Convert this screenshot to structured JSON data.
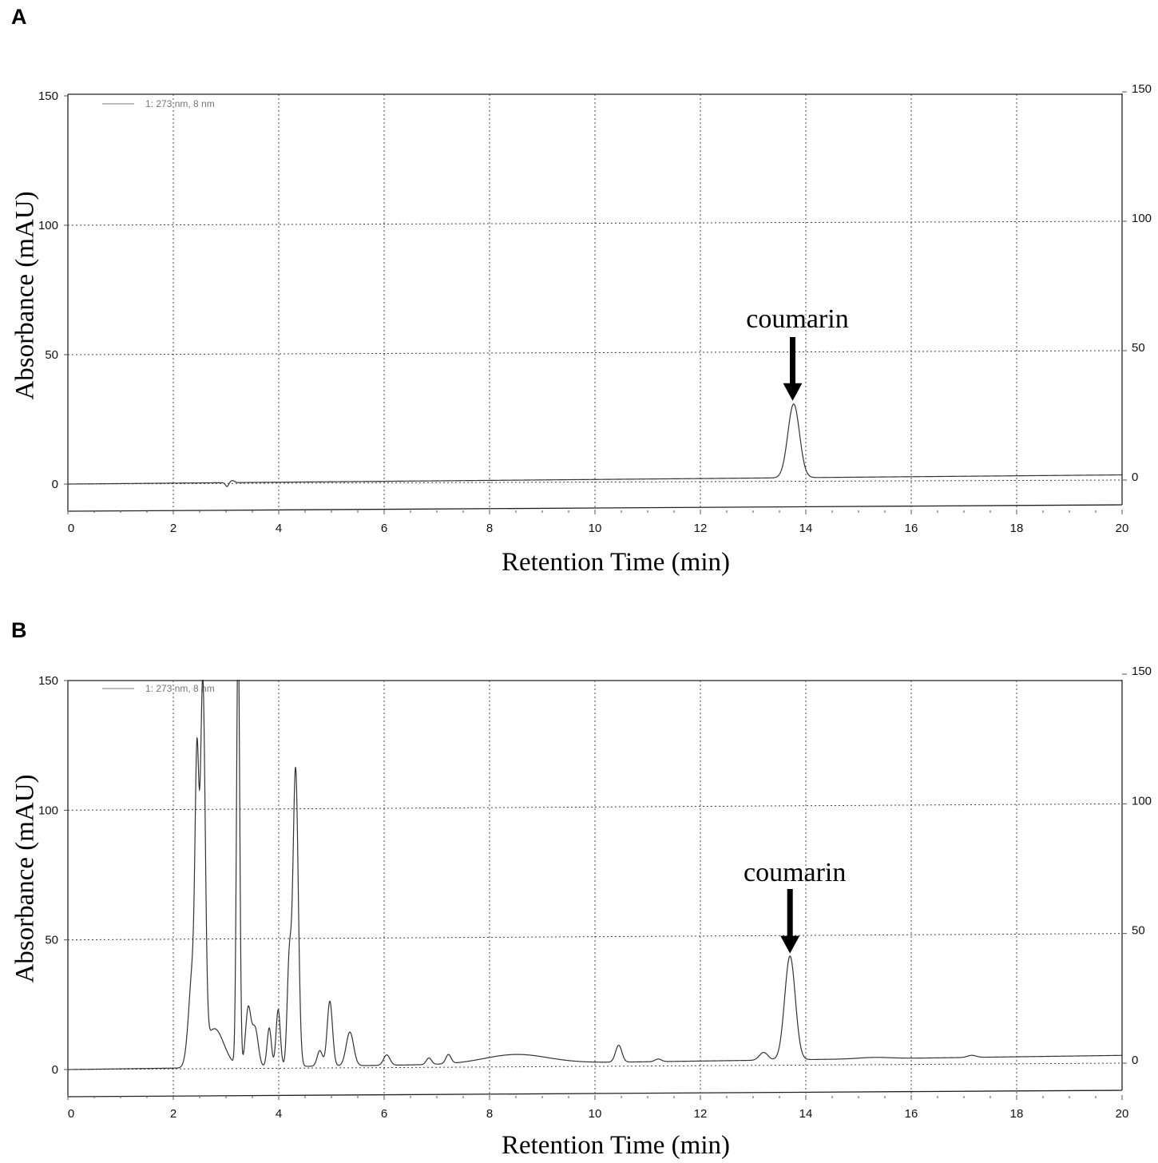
{
  "chart_data": [
    {
      "type": "line",
      "panel_label": "A",
      "title": "",
      "xlabel": "Retention Time (min)",
      "ylabel": "Absorbance (mAU)",
      "xlim": [
        0,
        20
      ],
      "ylim": [
        -10,
        150
      ],
      "x_ticks": [
        0,
        2,
        4,
        6,
        8,
        10,
        12,
        14,
        16,
        18,
        20
      ],
      "y_ticks": [
        0,
        50,
        100,
        150
      ],
      "right_y_ticks": [
        0,
        50,
        100,
        150
      ],
      "grid": true,
      "legend": {
        "position": "top-left",
        "text": "1: 273 nm, 8 nm"
      },
      "annotation": {
        "text": "coumarin",
        "x": 13.75
      },
      "baseline": {
        "x": [
          0,
          20
        ],
        "y": [
          0,
          2
        ]
      },
      "peaks": [
        {
          "rt": 3.02,
          "height": -1.5,
          "width": 0.03
        },
        {
          "rt": 3.12,
          "height": 0.8,
          "width": 0.04
        },
        {
          "rt": 13.77,
          "height": 28.5,
          "width": 0.11
        }
      ]
    },
    {
      "type": "line",
      "panel_label": "B",
      "title": "",
      "xlabel": "Retention Time (min)",
      "ylabel": "Absorbance (mAU)",
      "xlim": [
        0,
        20
      ],
      "ylim": [
        -10,
        150
      ],
      "x_ticks": [
        0,
        2,
        4,
        6,
        8,
        10,
        12,
        14,
        16,
        18,
        20
      ],
      "y_ticks": [
        0,
        50,
        100,
        150
      ],
      "right_y_ticks": [
        0,
        50,
        100,
        150
      ],
      "grid": true,
      "legend": {
        "position": "top-left",
        "text": "1: 273 nm, 8 nm"
      },
      "annotation": {
        "text": "coumarin",
        "x": 13.7
      },
      "baseline": {
        "x": [
          0,
          20
        ],
        "y": [
          0,
          3
        ]
      },
      "peaks": [
        {
          "rt": 2.38,
          "height": 40,
          "width": 0.08
        },
        {
          "rt": 2.45,
          "height": 90,
          "width": 0.035
        },
        {
          "rt": 2.56,
          "height": 140,
          "width": 0.045
        },
        {
          "rt": 2.78,
          "height": 15,
          "width": 0.18
        },
        {
          "rt": 3.23,
          "height": 170,
          "width": 0.03
        },
        {
          "rt": 3.42,
          "height": 22,
          "width": 0.05
        },
        {
          "rt": 3.55,
          "height": 15,
          "width": 0.06
        },
        {
          "rt": 3.82,
          "height": 15,
          "width": 0.04
        },
        {
          "rt": 3.99,
          "height": 22,
          "width": 0.04
        },
        {
          "rt": 4.2,
          "height": 40,
          "width": 0.04
        },
        {
          "rt": 4.32,
          "height": 115,
          "width": 0.05
        },
        {
          "rt": 4.78,
          "height": 6,
          "width": 0.05
        },
        {
          "rt": 4.97,
          "height": 25,
          "width": 0.05
        },
        {
          "rt": 5.35,
          "height": 13,
          "width": 0.07
        },
        {
          "rt": 6.05,
          "height": 4,
          "width": 0.06
        },
        {
          "rt": 6.85,
          "height": 2.5,
          "width": 0.05
        },
        {
          "rt": 7.22,
          "height": 3.5,
          "width": 0.05
        },
        {
          "rt": 8.5,
          "height": 3.5,
          "width": 0.6
        },
        {
          "rt": 10.45,
          "height": 6.5,
          "width": 0.06
        },
        {
          "rt": 11.2,
          "height": 1,
          "width": 0.06
        },
        {
          "rt": 13.2,
          "height": 3,
          "width": 0.08
        },
        {
          "rt": 13.7,
          "height": 40,
          "width": 0.1
        },
        {
          "rt": 15.3,
          "height": 0.5,
          "width": 0.3
        },
        {
          "rt": 17.15,
          "height": 0.8,
          "width": 0.08
        }
      ]
    }
  ]
}
